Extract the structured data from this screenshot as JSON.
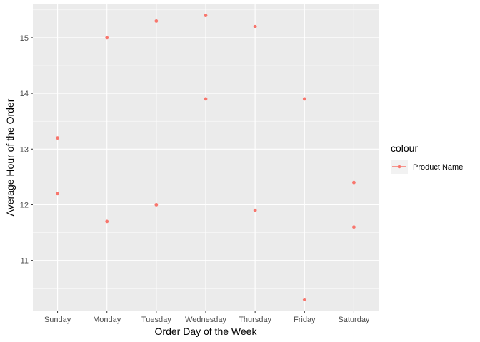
{
  "chart_data": {
    "type": "scatter",
    "title": "",
    "xlabel": "Order Day of the Week",
    "ylabel": "Average Hour of the Order",
    "categories": [
      "Sunday",
      "Monday",
      "Tuesday",
      "Wednesday",
      "Thursday",
      "Friday",
      "Saturday"
    ],
    "ylim": [
      10.1,
      15.6
    ],
    "y_ticks": [
      11,
      12,
      13,
      14,
      15
    ],
    "grid": true,
    "legend": {
      "title": "colour",
      "placement": "right",
      "entries": [
        "Product Name"
      ]
    },
    "series": [
      {
        "name": "Product Name",
        "color": "#F8766D",
        "points": [
          {
            "x": "Sunday",
            "y": 13.2
          },
          {
            "x": "Sunday",
            "y": 12.2
          },
          {
            "x": "Monday",
            "y": 15.0
          },
          {
            "x": "Monday",
            "y": 11.7
          },
          {
            "x": "Tuesday",
            "y": 15.3
          },
          {
            "x": "Tuesday",
            "y": 12.0
          },
          {
            "x": "Wednesday",
            "y": 15.4
          },
          {
            "x": "Wednesday",
            "y": 13.9
          },
          {
            "x": "Thursday",
            "y": 15.2
          },
          {
            "x": "Thursday",
            "y": 11.9
          },
          {
            "x": "Friday",
            "y": 13.9
          },
          {
            "x": "Friday",
            "y": 10.3
          },
          {
            "x": "Saturday",
            "y": 12.4
          },
          {
            "x": "Saturday",
            "y": 11.6
          }
        ]
      }
    ],
    "panel_color": "#EBEBEB",
    "grid_color": "#FFFFFF"
  }
}
